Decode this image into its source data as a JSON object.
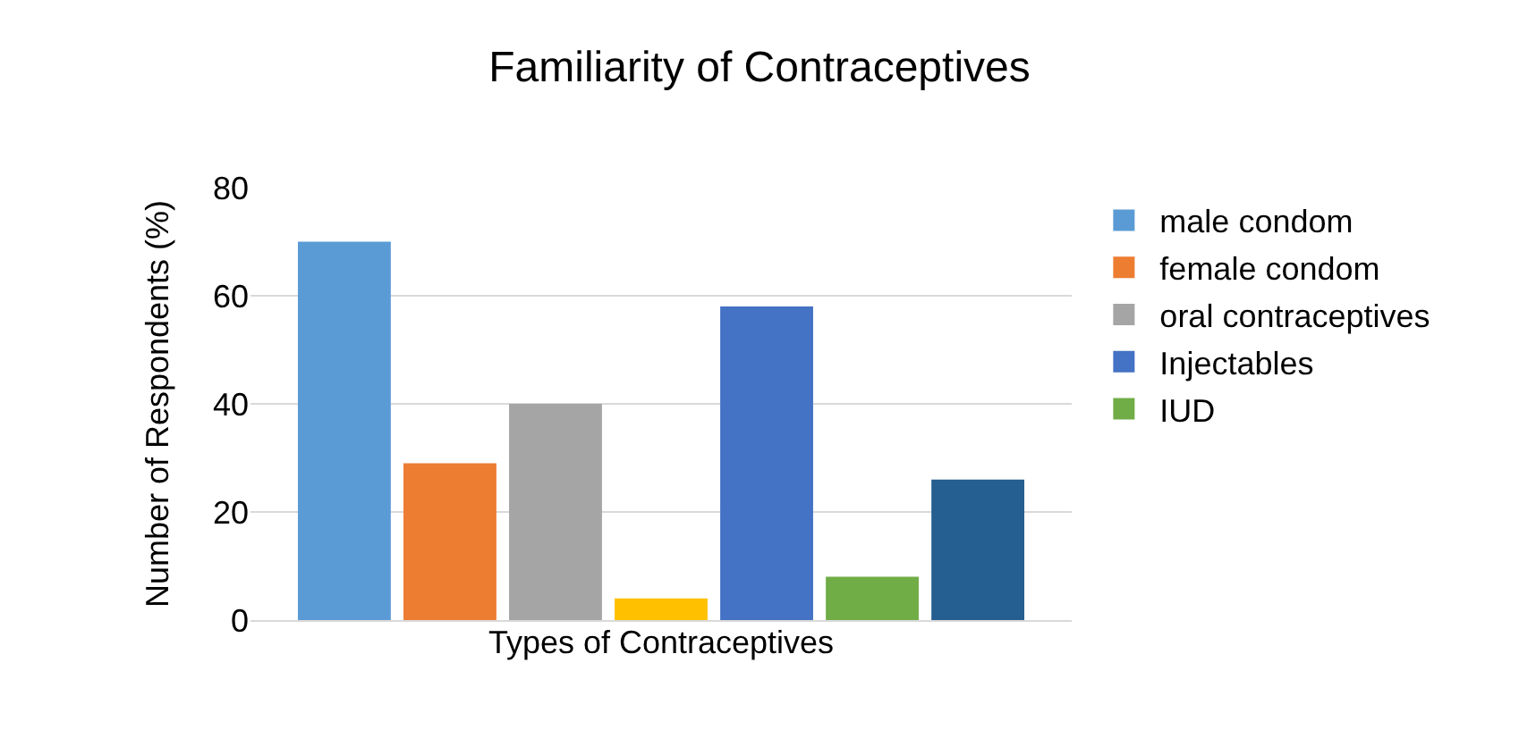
{
  "chart_data": {
    "type": "bar",
    "title": "Familiarity of Contraceptives",
    "xlabel": "Types of Contraceptives",
    "ylabel": "Number of Respondents (%)",
    "categories": [
      null
    ],
    "series": [
      {
        "name": "male condom",
        "color": "#5b9bd5",
        "values": [
          70
        ]
      },
      {
        "name": "female condom",
        "color": "#ed7d31",
        "values": [
          29
        ]
      },
      {
        "name": "oral contraceptives",
        "color": "#a5a5a5",
        "values": [
          40
        ]
      },
      {
        "color": "#ffc000",
        "values": [
          4
        ]
      },
      {
        "name": "Injectables",
        "color": "#4472c4",
        "values": [
          58
        ]
      },
      {
        "name": "IUD",
        "color": "#70ad47",
        "values": [
          8
        ]
      },
      {
        "color": "#255e91",
        "values": [
          26
        ]
      }
    ],
    "ylim": [
      0,
      80
    ],
    "yticks": [
      0,
      20,
      40,
      60,
      80
    ],
    "grid": "y",
    "legend": "right"
  }
}
